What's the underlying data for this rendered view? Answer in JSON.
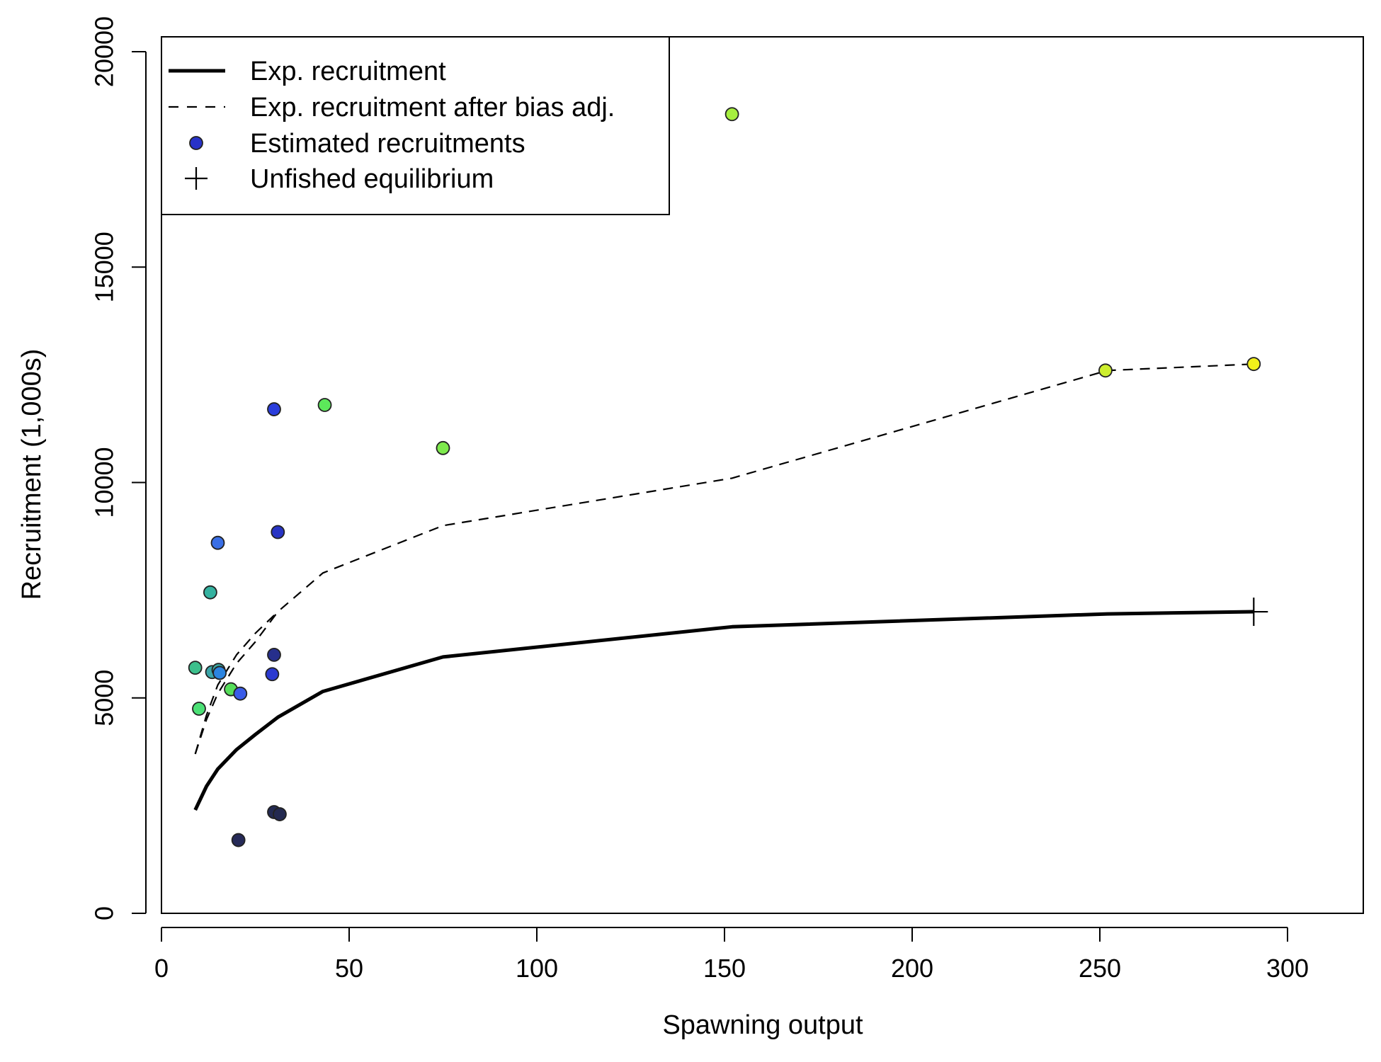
{
  "chart_data": {
    "type": "line",
    "title": "",
    "xlabel": "Spawning output",
    "ylabel": "Recruitment (1,000s)",
    "xlim": [
      0,
      320
    ],
    "ylim": [
      0,
      20600
    ],
    "x_ticks": [
      0,
      50,
      100,
      150,
      200,
      250,
      300
    ],
    "y_ticks": [
      0,
      5000,
      10000,
      15000,
      20000
    ],
    "grid": false,
    "legend_placement": "top-left",
    "legend": [
      {
        "label": "Exp. recruitment",
        "style": "solid-line"
      },
      {
        "label": "Exp. recruitment after bias adj.",
        "style": "dashed-line"
      },
      {
        "label": "Estimated recruitments",
        "style": "point",
        "color": "#2833c8"
      },
      {
        "label": "Unfished equilibrium",
        "style": "cross"
      }
    ],
    "series": [
      {
        "style": "solid",
        "x": [
          9,
          12,
          15,
          20,
          25,
          31,
          43,
          75,
          152,
          252,
          291
        ],
        "y": [
          2400,
          2950,
          3350,
          3800,
          4150,
          4550,
          5150,
          5950,
          6650,
          6950,
          7000
        ]
      },
      {
        "style": "dashed",
        "x": [
          9,
          12,
          15,
          20,
          25,
          31,
          43,
          75,
          152,
          252,
          291
        ],
        "y": [
          3700,
          4500,
          5100,
          5800,
          6300,
          7000,
          7900,
          9000,
          10100,
          12600,
          12750
        ]
      },
      {
        "style": "dashed",
        "x": [
          9,
          12,
          15,
          20,
          25,
          31
        ],
        "y": [
          3700,
          4600,
          5300,
          6000,
          6500,
          7000
        ]
      }
    ],
    "points": [
      {
        "x": 9,
        "y": 5700,
        "color": "#3cbf8c"
      },
      {
        "x": 10,
        "y": 4750,
        "color": "#4be075"
      },
      {
        "x": 13,
        "y": 7450,
        "color": "#35b2a0"
      },
      {
        "x": 13.5,
        "y": 5600,
        "color": "#3aa5a8"
      },
      {
        "x": 15,
        "y": 8600,
        "color": "#3a6fe6"
      },
      {
        "x": 15.2,
        "y": 5650,
        "color": "#3ca8a2"
      },
      {
        "x": 15.5,
        "y": 5580,
        "color": "#2b84e0"
      },
      {
        "x": 18.5,
        "y": 5200,
        "color": "#56de5a"
      },
      {
        "x": 20.5,
        "y": 1700,
        "color": "#262a58"
      },
      {
        "x": 21,
        "y": 5100,
        "color": "#3a5ce8"
      },
      {
        "x": 30,
        "y": 11700,
        "color": "#2a3ddc"
      },
      {
        "x": 30,
        "y": 6000,
        "color": "#262f8c"
      },
      {
        "x": 30,
        "y": 2350,
        "color": "#232a52"
      },
      {
        "x": 31,
        "y": 8850,
        "color": "#2834c4"
      },
      {
        "x": 29.5,
        "y": 5550,
        "color": "#2b3ad0"
      },
      {
        "x": 31.5,
        "y": 2300,
        "color": "#232950"
      },
      {
        "x": 43.5,
        "y": 11800,
        "color": "#5ce95a"
      },
      {
        "x": 75,
        "y": 10800,
        "color": "#7eea4d"
      },
      {
        "x": 152,
        "y": 18550,
        "color": "#a6ef3f"
      },
      {
        "x": 251.5,
        "y": 12600,
        "color": "#cdee2e"
      },
      {
        "x": 291,
        "y": 12750,
        "color": "#f2f01a"
      }
    ],
    "unfished_equilibrium": {
      "x": 291,
      "y": 7000
    }
  }
}
